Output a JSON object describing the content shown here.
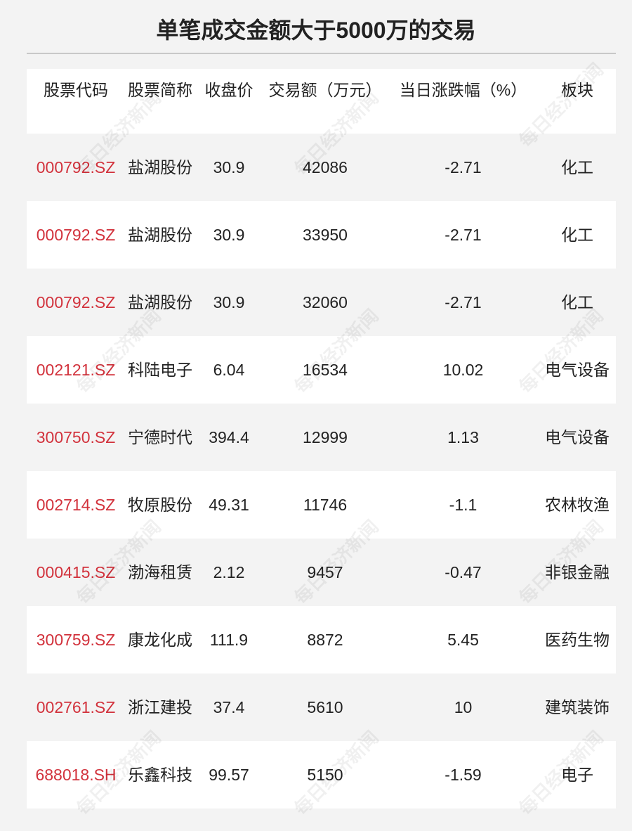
{
  "title": "单笔成交金额大于5000万的交易",
  "watermark": "每日经济新闻",
  "table": {
    "header": [
      "股票代码",
      "股票简称",
      "收盘价",
      "交易额（万元）",
      "当日涨跌幅（%）",
      "板块"
    ],
    "rows": [
      [
        "000792.SZ",
        "盐湖股份",
        30.9,
        42086,
        -2.71,
        "化工"
      ],
      [
        "000792.SZ",
        "盐湖股份",
        30.9,
        33950,
        -2.71,
        "化工"
      ],
      [
        "000792.SZ",
        "盐湖股份",
        30.9,
        32060,
        -2.71,
        "化工"
      ],
      [
        "002121.SZ",
        "科陆电子",
        6.04,
        16534,
        10.02,
        "电气设备"
      ],
      [
        "300750.SZ",
        "宁德时代",
        394.4,
        12999,
        1.13,
        "电气设备"
      ],
      [
        "002714.SZ",
        "牧原股份",
        49.31,
        11746,
        -1.1,
        "农林牧渔"
      ],
      [
        "000415.SZ",
        "渤海租赁",
        2.12,
        9457,
        -0.47,
        "非银金融"
      ],
      [
        "300759.SZ",
        "康龙化成",
        111.9,
        8872,
        5.45,
        "医药生物"
      ],
      [
        "002761.SZ",
        "浙江建投",
        37.4,
        5610,
        10,
        "建筑装饰"
      ],
      [
        "688018.SH",
        "乐鑫科技",
        99.57,
        5150,
        -1.59,
        "电子"
      ]
    ]
  }
}
